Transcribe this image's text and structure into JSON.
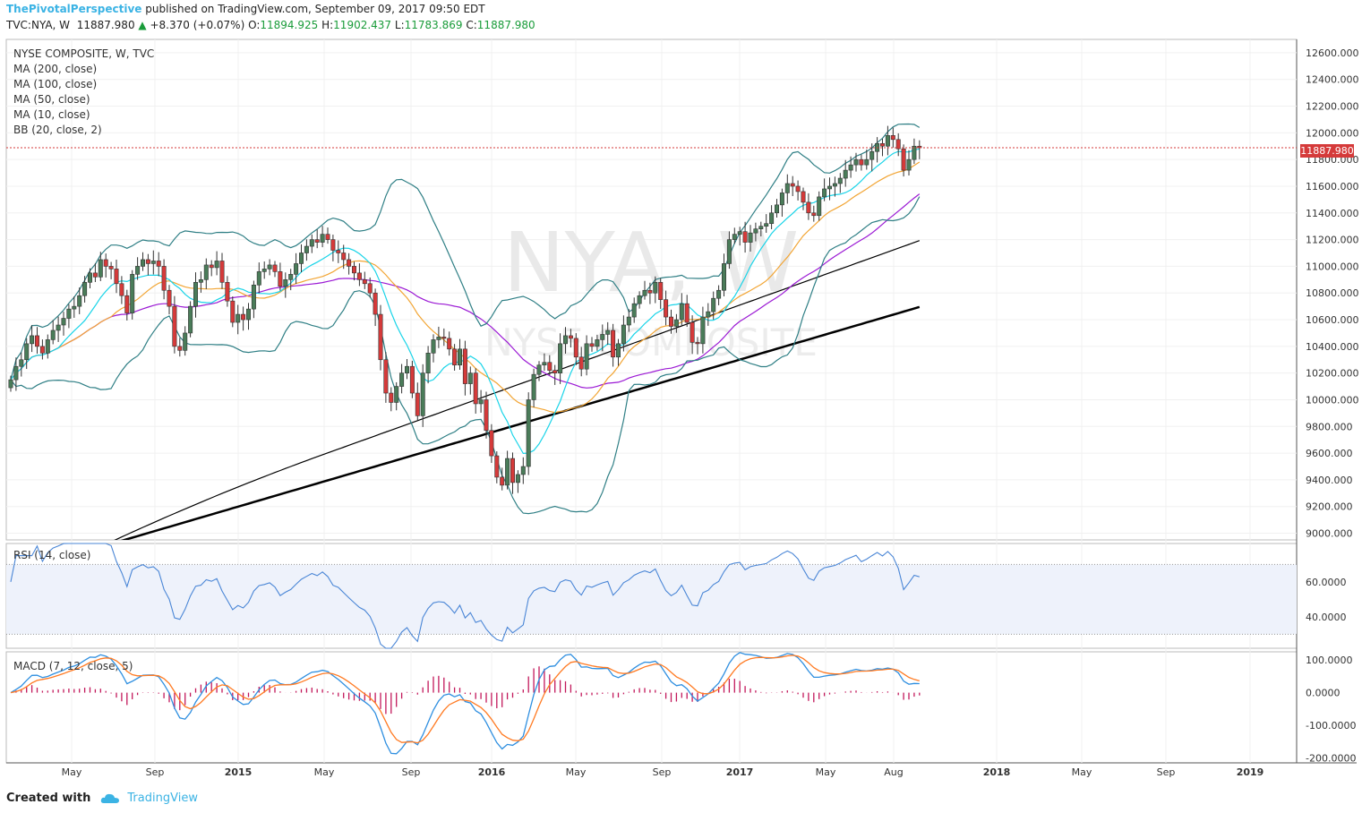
{
  "header": {
    "publisher": "ThePivotalPerspective",
    "published_text": "published on TradingView.com, September 09, 2017 09:50 EDT",
    "symbol": "TVC:NYA, W",
    "last": "11887.980",
    "arrow": "▲",
    "change": "+8.370 (+0.07%)",
    "o_label": "O:",
    "o": "11894.925",
    "h_label": "H:",
    "h": "11902.437",
    "l_label": "L:",
    "l": "11783.869",
    "c_label": "C:",
    "c": "11887.980"
  },
  "legend": {
    "title": "NYSE COMPOSITE, W, TVC",
    "ma200": "MA (200, close)",
    "ma100": "MA (100, close)",
    "ma50": "MA (50, close)",
    "ma10": "MA (10, close)",
    "bb": "BB (20, close, 2)"
  },
  "watermark": {
    "symbol": "NYA, W",
    "name": "NYSE COMPOSITE"
  },
  "rsi_label": "RSI (14, close)",
  "macd_label": "MACD (7, 12, close, 5)",
  "price_tag": "11887.980",
  "footer": {
    "created": "Created with",
    "brand": "TradingView"
  },
  "colors": {
    "up": "#4a7c59",
    "down": "#d53a3a",
    "ma200": "#000000",
    "ma100": "#000000",
    "ma50": "#9b19d4",
    "ma10": "#19d4e8",
    "bb": "#2f7f85",
    "bbmid": "#f2a534",
    "rsi": "#4a86d6",
    "macd": "#2f8fe0",
    "signal": "#ff7a22",
    "hist": "#c2185b"
  },
  "chart_data": [
    {
      "type": "candlestick",
      "ylim": [
        8950,
        12700
      ],
      "yticks": [
        "12600.000",
        "12400.000",
        "12200.000",
        "12000.000",
        "11800.000",
        "11600.000",
        "11400.000",
        "11200.000",
        "11000.000",
        "10800.000",
        "10600.000",
        "10400.000",
        "10200.000",
        "10000.000",
        "9800.000",
        "9600.000",
        "9400.000",
        "9200.000",
        "9000.000"
      ],
      "xticks": [
        "May",
        "Sep",
        "2015",
        "May",
        "Sep",
        "2016",
        "May",
        "Sep",
        "2017",
        "May",
        "Aug",
        "2018",
        "May",
        "Sep",
        "2019"
      ],
      "closes": [
        10150,
        10250,
        10300,
        10420,
        10480,
        10400,
        10350,
        10450,
        10520,
        10560,
        10610,
        10680,
        10700,
        10780,
        10880,
        10950,
        10920,
        11050,
        11000,
        10980,
        10870,
        10780,
        10650,
        10940,
        11000,
        11050,
        11020,
        11040,
        11000,
        10820,
        10700,
        10400,
        10370,
        10500,
        10700,
        10880,
        10900,
        11010,
        10990,
        11040,
        10880,
        10740,
        10580,
        10640,
        10600,
        10680,
        10860,
        10960,
        10980,
        11010,
        10960,
        10850,
        10900,
        10940,
        11020,
        11100,
        11150,
        11200,
        11180,
        11240,
        11200,
        11120,
        11100,
        11050,
        11000,
        10950,
        10900,
        10870,
        10800,
        10640,
        10300,
        10050,
        9980,
        10100,
        10200,
        10250,
        10050,
        9880,
        10200,
        10350,
        10450,
        10470,
        10460,
        10380,
        10260,
        10380,
        10120,
        10200,
        9970,
        10000,
        9770,
        9580,
        9420,
        9360,
        9560,
        9380,
        9440,
        9500,
        10000,
        10190,
        10260,
        10280,
        10220,
        10200,
        10420,
        10480,
        10460,
        10320,
        10230,
        10420,
        10400,
        10450,
        10490,
        10520,
        10320,
        10420,
        10560,
        10620,
        10720,
        10780,
        10820,
        10800,
        10880,
        10750,
        10620,
        10550,
        10600,
        10720,
        10580,
        10430,
        10420,
        10620,
        10660,
        10760,
        10820,
        11020,
        11200,
        11240,
        11260,
        11180,
        11250,
        11280,
        11300,
        11320,
        11400,
        11460,
        11550,
        11620,
        11600,
        11560,
        11480,
        11400,
        11380,
        11520,
        11580,
        11600,
        11620,
        11660,
        11720,
        11760,
        11800,
        11760,
        11800,
        11860,
        11920,
        11900,
        11980,
        11950,
        11880,
        11720,
        11800,
        11900,
        11888
      ],
      "ma10_values": "computed from closes",
      "note_series": [
        "MA 200",
        "MA 100",
        "MA 50",
        "MA 10",
        "BB upper",
        "BB basis",
        "BB lower"
      ]
    },
    {
      "type": "line",
      "name": "RSI (14, close)",
      "ylim": [
        22,
        82
      ],
      "yticks": [
        "60.0000",
        "40.0000"
      ],
      "bands": [
        70,
        30
      ]
    },
    {
      "type": "line",
      "name": "MACD (7, 12, close, 5)",
      "ylim": [
        -215,
        125
      ],
      "yticks": [
        "100.0000",
        "0.0000",
        "-100.0000",
        "-200.0000"
      ]
    }
  ]
}
